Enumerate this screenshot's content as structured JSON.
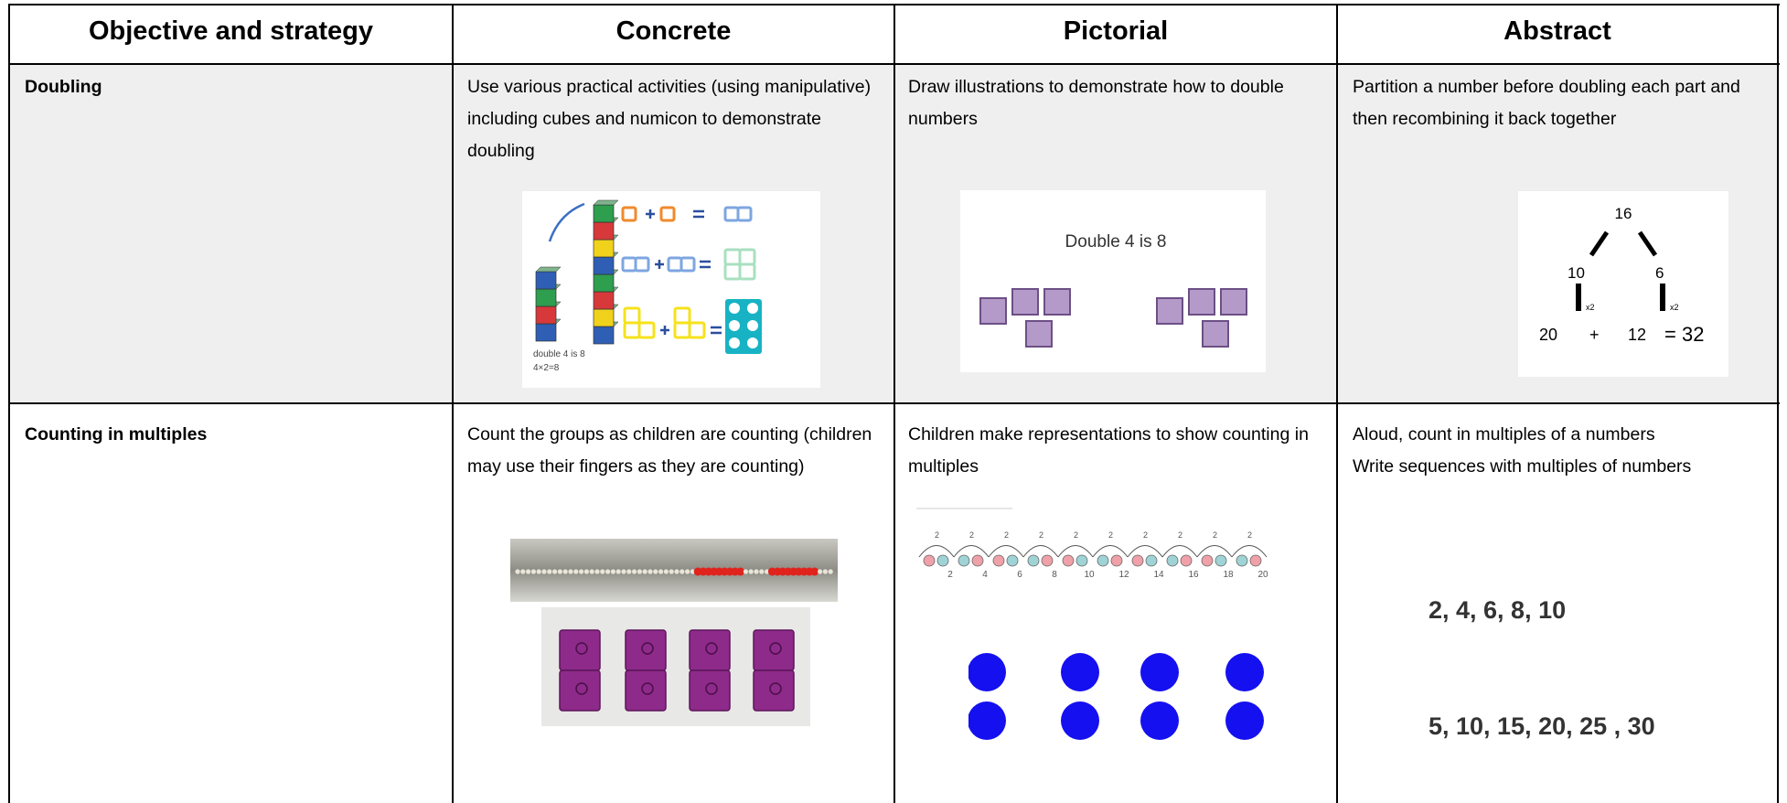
{
  "table": {
    "header": [
      "Objective and strategy",
      "Concrete",
      "Pictorial",
      "Abstract"
    ],
    "rows": [
      [
        "Doubling",
        "Use various practical activities (using manipulative) including cubes and numicon to demonstrate doubling",
        "Draw illustrations to demonstrate how to double numbers",
        "Partition a number before doubling each part and then recombining it back together"
      ],
      [
        "Counting in multiples",
        "Count the groups as children are counting (children may use their fingers as they are counting)",
        "Children make representations to show counting in multiples",
        "Aloud, count in multiples of a numbers\nWrite sequences with multiples of numbers"
      ]
    ]
  },
  "illustrations": {
    "doubling_concrete": {
      "caption": [
        "double 4 is 8",
        "4×2=8"
      ]
    },
    "doubling_pictorial": {
      "caption": "Double 4 is 8"
    },
    "doubling_abstract": {
      "top": "16",
      "left": "10",
      "right": "6",
      "operator": "x2",
      "equation": [
        "20",
        "+",
        "12",
        "= 32"
      ]
    },
    "counting_pictorial": {
      "jump": "2",
      "marks": [
        2,
        4,
        6,
        8,
        10,
        12,
        14,
        16,
        18,
        20
      ]
    },
    "counting_abstract": {
      "sequences": [
        "2, 4, 6, 8, 10",
        "5, 10, 15, 20, 25 , 30"
      ]
    }
  }
}
